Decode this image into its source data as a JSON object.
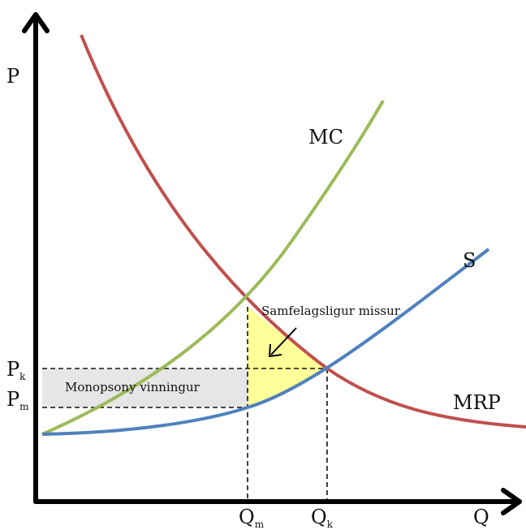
{
  "axes": {
    "y_label": "P",
    "x_label": "Q"
  },
  "curves": {
    "mc": {
      "label": "MC",
      "color": "#9bbb59"
    },
    "s": {
      "label": "S",
      "color": "#4f81bd"
    },
    "mrp": {
      "label": "MRP",
      "color": "#c0504d"
    }
  },
  "ticks": {
    "pk": {
      "main": "P",
      "sub": "k"
    },
    "pm": {
      "main": "P",
      "sub": "m"
    },
    "qm": {
      "main": "Q",
      "sub": "m"
    },
    "qk": {
      "main": "Q",
      "sub": "k"
    }
  },
  "areas": {
    "monopsony": {
      "label": "Monopsony vinningur",
      "color": "#e6e6e6"
    },
    "deadweight": {
      "label": "Samfelagsligur missur",
      "color": "#ffff99"
    }
  }
}
